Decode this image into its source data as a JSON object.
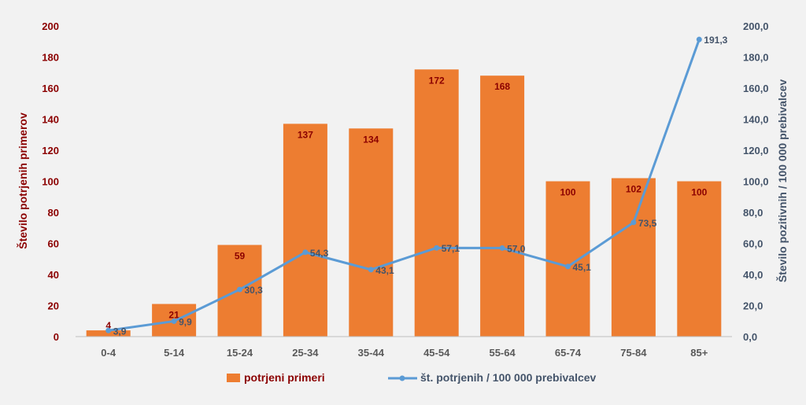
{
  "chart_data": {
    "type": "bar",
    "categories": [
      "0-4",
      "5-14",
      "15-24",
      "25-34",
      "35-44",
      "45-54",
      "55-64",
      "65-74",
      "75-84",
      "85+"
    ],
    "series": [
      {
        "name": "potrjeni primeri",
        "kind": "bar",
        "axis": "left",
        "values": [
          4,
          21,
          59,
          137,
          134,
          172,
          168,
          100,
          102,
          100
        ],
        "labels": [
          "4",
          "21",
          "59",
          "137",
          "134",
          "172",
          "168",
          "100",
          "102",
          "100"
        ],
        "color": "#ed7d31",
        "label_color": "#8b0000"
      },
      {
        "name": "št. potrjenih / 100 000 prebivalcev",
        "kind": "line",
        "axis": "right",
        "values": [
          3.9,
          9.9,
          30.3,
          54.3,
          43.1,
          57.1,
          57.0,
          45.1,
          73.5,
          191.3
        ],
        "labels": [
          "3,9",
          "9,9",
          "30,3",
          "54,3",
          "43,1",
          "57,1",
          "57,0",
          "45,1",
          "73,5",
          "191,3"
        ],
        "color": "#5b9bd5",
        "label_color": "#44546a"
      }
    ],
    "ylabel_left": "Število potrjenih primerov",
    "ylabel_right": "Število pozitivnih / 100 000 prebivalcev",
    "ylim_left": [
      0,
      200
    ],
    "ylim_right": [
      0,
      200
    ],
    "yticks_left": [
      "0",
      "20",
      "40",
      "60",
      "80",
      "100",
      "120",
      "140",
      "160",
      "180",
      "200"
    ],
    "yticks_right": [
      "0,0",
      "20,0",
      "40,0",
      "60,0",
      "80,0",
      "100,0",
      "120,0",
      "140,0",
      "160,0",
      "180,0",
      "200,0"
    ],
    "left_axis_color": "#8b0000",
    "right_axis_color": "#44546a",
    "grid": false,
    "legend_position": "bottom"
  }
}
